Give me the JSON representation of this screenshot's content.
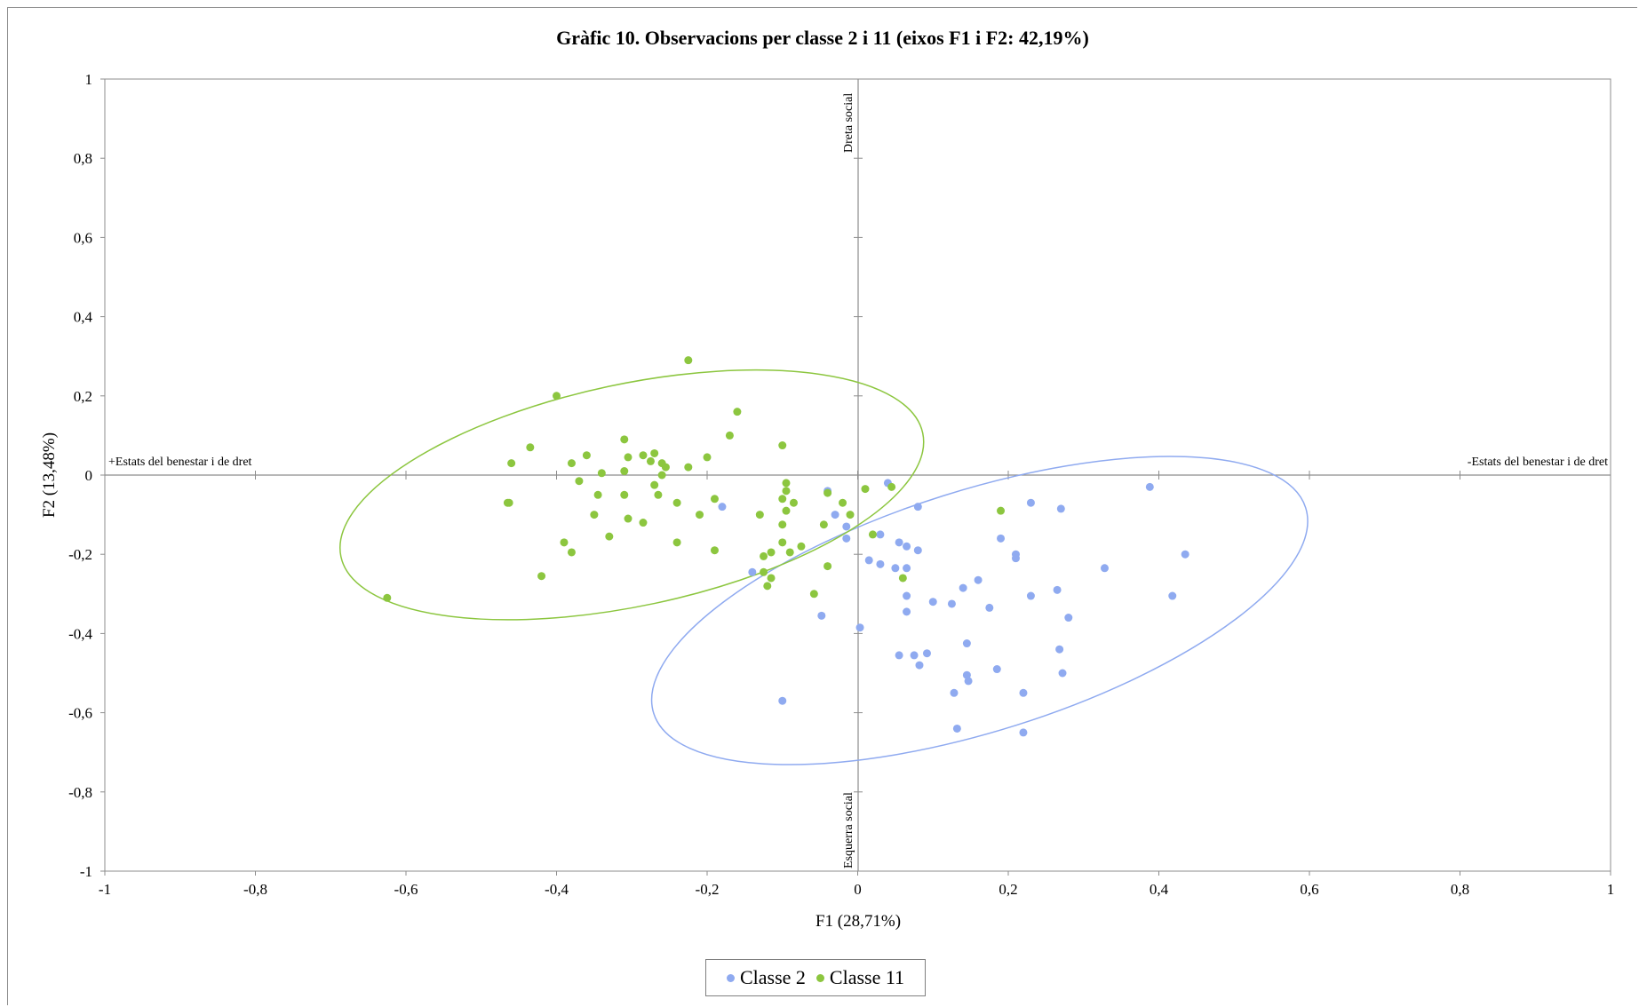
{
  "chart_data": {
    "type": "scatter",
    "title": "Gràfic 10. Observacions per classe 2 i 11 (eixos F1 i F2: 42,19%)",
    "xlabel": "F1 (28,71%)",
    "ylabel": "F2 (13,48%)",
    "xlim": [
      -1,
      1
    ],
    "ylim": [
      -1,
      1
    ],
    "x_ticks": [
      -1,
      -0.8,
      -0.6,
      -0.4,
      -0.2,
      0,
      0.2,
      0.4,
      0.6,
      0.8,
      1
    ],
    "x_tick_labels": [
      "-1",
      "-0,8",
      "-0,6",
      "-0,4",
      "-0,2",
      "0",
      "0,2",
      "0,4",
      "0,6",
      "0,8",
      "1"
    ],
    "y_ticks": [
      1,
      0.8,
      0.6,
      0.4,
      0.2,
      0,
      -0.2,
      -0.4,
      -0.6,
      -0.8,
      -1
    ],
    "y_tick_labels": [
      "1",
      "0,8",
      "0,6",
      "0,4",
      "0,2",
      "0",
      "-0,2",
      "-0,4",
      "-0,6",
      "-0,8",
      "-1"
    ],
    "grid": false,
    "legend_position": "bottom",
    "annotations": {
      "left": "+Estats del benestar i de dret",
      "right": "-Estats del benestar i de dret",
      "top": "Dreta social",
      "bottom": "Esquerra social"
    },
    "series": [
      {
        "name": "Classe 2",
        "color": "#8faaf0",
        "ellipse": {
          "cx": 0.162,
          "cy": -0.342,
          "rx": 0.454,
          "ry": 0.304,
          "angle_deg": -17.5
        },
        "points": [
          [
            -0.18,
            -0.08
          ],
          [
            -0.04,
            -0.04
          ],
          [
            -0.03,
            -0.1
          ],
          [
            -0.015,
            -0.13
          ],
          [
            -0.015,
            -0.16
          ],
          [
            0.04,
            -0.02
          ],
          [
            0.08,
            -0.08
          ],
          [
            0.03,
            -0.15
          ],
          [
            0.055,
            -0.17
          ],
          [
            0.065,
            -0.18
          ],
          [
            0.08,
            -0.19
          ],
          [
            -0.14,
            -0.245
          ],
          [
            0.015,
            -0.215
          ],
          [
            0.03,
            -0.225
          ],
          [
            0.05,
            -0.235
          ],
          [
            0.065,
            -0.235
          ],
          [
            0.065,
            -0.305
          ],
          [
            0.065,
            -0.345
          ],
          [
            0.1,
            -0.32
          ],
          [
            0.125,
            -0.325
          ],
          [
            0.14,
            -0.285
          ],
          [
            0.16,
            -0.265
          ],
          [
            0.175,
            -0.335
          ],
          [
            -0.048,
            -0.355
          ],
          [
            0.003,
            -0.385
          ],
          [
            0.055,
            -0.455
          ],
          [
            0.075,
            -0.455
          ],
          [
            0.082,
            -0.48
          ],
          [
            0.092,
            -0.45
          ],
          [
            0.145,
            -0.425
          ],
          [
            0.145,
            -0.505
          ],
          [
            0.147,
            -0.52
          ],
          [
            0.185,
            -0.49
          ],
          [
            0.128,
            -0.55
          ],
          [
            0.132,
            -0.64
          ],
          [
            -0.1,
            -0.57
          ],
          [
            0.22,
            -0.55
          ],
          [
            0.22,
            -0.65
          ],
          [
            0.19,
            -0.16
          ],
          [
            0.21,
            -0.2
          ],
          [
            0.21,
            -0.21
          ],
          [
            0.23,
            -0.07
          ],
          [
            0.23,
            -0.305
          ],
          [
            0.265,
            -0.29
          ],
          [
            0.27,
            -0.085
          ],
          [
            0.268,
            -0.44
          ],
          [
            0.272,
            -0.5
          ],
          [
            0.28,
            -0.36
          ],
          [
            0.328,
            -0.235
          ],
          [
            0.388,
            -0.03
          ],
          [
            0.418,
            -0.305
          ],
          [
            0.435,
            -0.2
          ]
        ]
      },
      {
        "name": "Classe 11",
        "color": "#8cc63f",
        "ellipse": {
          "cx": -0.3,
          "cy": -0.05,
          "rx": 0.395,
          "ry": 0.28,
          "angle_deg": -12
        },
        "points": [
          [
            -0.225,
            0.29
          ],
          [
            -0.4,
            0.2
          ],
          [
            -0.16,
            0.16
          ],
          [
            -0.17,
            0.1
          ],
          [
            -0.31,
            0.09
          ],
          [
            -0.1,
            0.075
          ],
          [
            -0.435,
            0.07
          ],
          [
            -0.27,
            0.055
          ],
          [
            -0.285,
            0.05
          ],
          [
            -0.36,
            0.05
          ],
          [
            -0.305,
            0.045
          ],
          [
            -0.2,
            0.045
          ],
          [
            -0.46,
            0.03
          ],
          [
            -0.38,
            0.03
          ],
          [
            -0.275,
            0.035
          ],
          [
            -0.26,
            0.03
          ],
          [
            -0.255,
            0.02
          ],
          [
            -0.225,
            0.02
          ],
          [
            -0.34,
            0.005
          ],
          [
            -0.31,
            0.01
          ],
          [
            -0.26,
            0.0
          ],
          [
            -0.37,
            -0.015
          ],
          [
            -0.27,
            -0.025
          ],
          [
            -0.095,
            -0.02
          ],
          [
            -0.465,
            -0.07
          ],
          [
            -0.463,
            -0.07
          ],
          [
            -0.345,
            -0.05
          ],
          [
            -0.31,
            -0.05
          ],
          [
            -0.265,
            -0.05
          ],
          [
            -0.24,
            -0.07
          ],
          [
            -0.19,
            -0.06
          ],
          [
            -0.1,
            -0.06
          ],
          [
            -0.095,
            -0.04
          ],
          [
            -0.04,
            -0.045
          ],
          [
            -0.02,
            -0.07
          ],
          [
            0.01,
            -0.035
          ],
          [
            0.045,
            -0.03
          ],
          [
            -0.35,
            -0.1
          ],
          [
            -0.305,
            -0.11
          ],
          [
            -0.285,
            -0.12
          ],
          [
            -0.21,
            -0.1
          ],
          [
            -0.13,
            -0.1
          ],
          [
            -0.095,
            -0.09
          ],
          [
            -0.085,
            -0.07
          ],
          [
            -0.01,
            -0.1
          ],
          [
            -0.045,
            -0.125
          ],
          [
            -0.1,
            -0.125
          ],
          [
            0.02,
            -0.15
          ],
          [
            0.19,
            -0.09
          ],
          [
            -0.33,
            -0.155
          ],
          [
            -0.39,
            -0.17
          ],
          [
            -0.38,
            -0.195
          ],
          [
            -0.24,
            -0.17
          ],
          [
            -0.19,
            -0.19
          ],
          [
            -0.1,
            -0.17
          ],
          [
            -0.075,
            -0.18
          ],
          [
            -0.115,
            -0.195
          ],
          [
            -0.09,
            -0.195
          ],
          [
            -0.125,
            -0.205
          ],
          [
            -0.42,
            -0.255
          ],
          [
            -0.125,
            -0.245
          ],
          [
            -0.115,
            -0.26
          ],
          [
            -0.12,
            -0.28
          ],
          [
            -0.04,
            -0.23
          ],
          [
            0.06,
            -0.26
          ],
          [
            -0.058,
            -0.3
          ],
          [
            -0.625,
            -0.31
          ]
        ]
      }
    ]
  }
}
